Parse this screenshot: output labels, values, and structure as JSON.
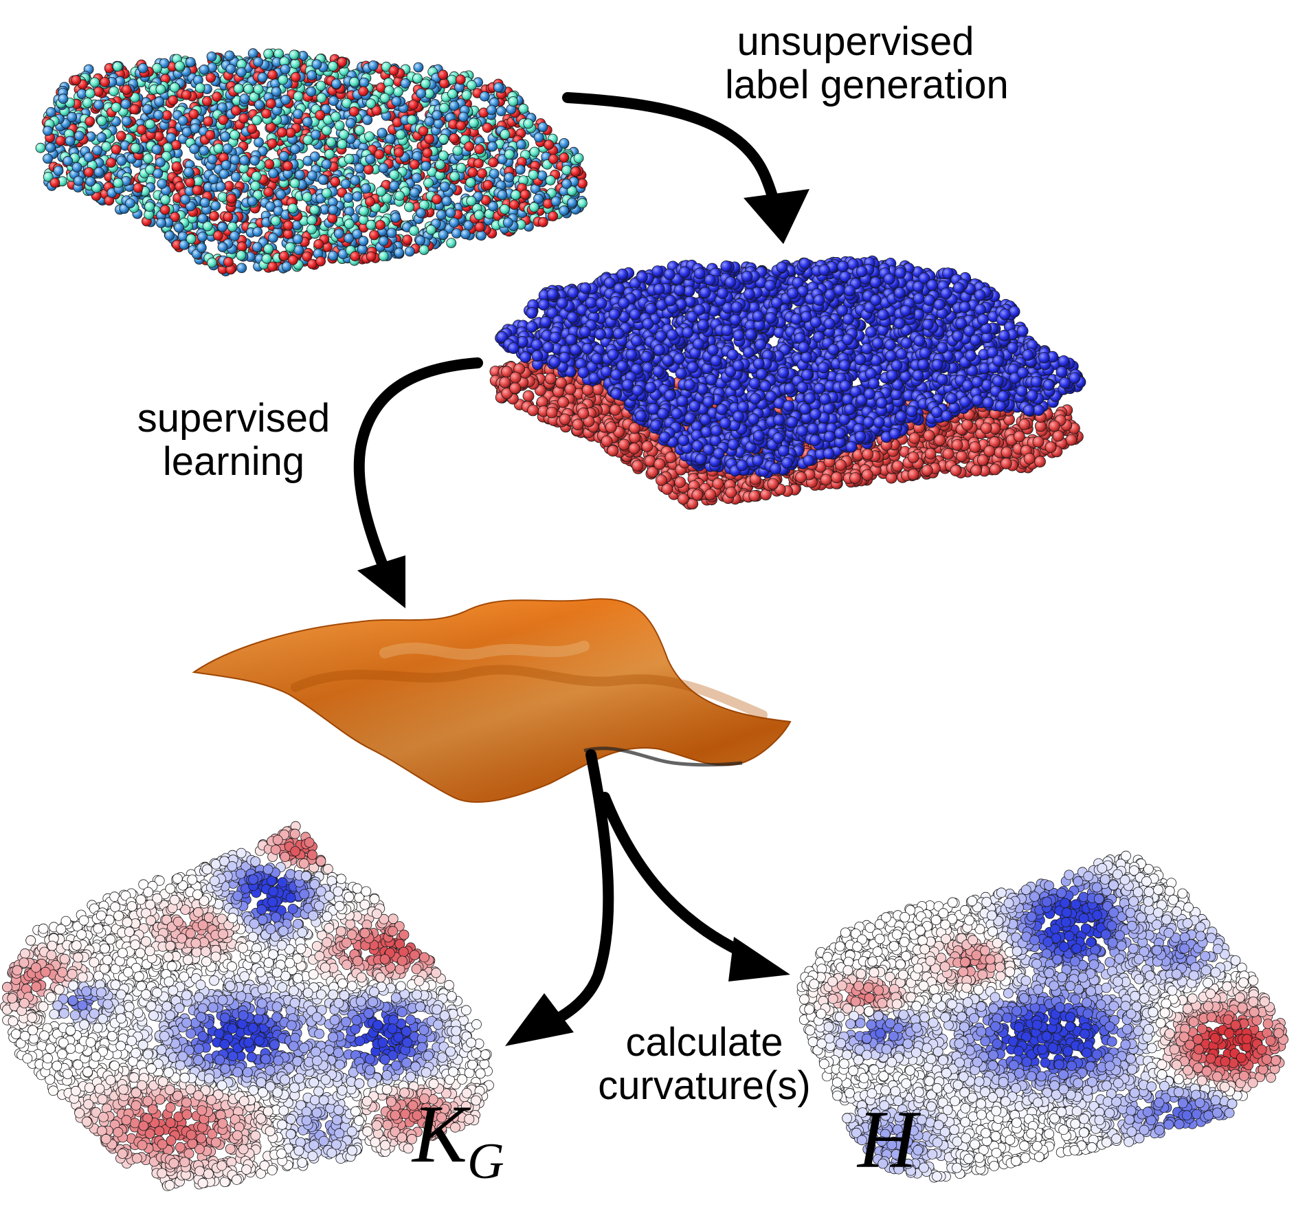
{
  "labels": {
    "unsupervised_line1": "unsupervised",
    "unsupervised_line2": "label generation",
    "supervised_line1": "supervised",
    "supervised_line2": "learning",
    "calculate_line1": "calculate",
    "calculate_line2": "curvature(s)"
  },
  "math": {
    "gaussian_main": "K",
    "gaussian_sub": "G",
    "mean": "H"
  },
  "colors": {
    "lipid_red": "#e8282b",
    "lipid_cyan": "#5fe6c8",
    "lipid_blue": "#3b8fd9",
    "leaflet_upper": "#2b33e6",
    "leaflet_lower": "#e24646",
    "surface_orange": "#f28c28",
    "curv_positive": "#d9363e",
    "curv_negative": "#2f3fe0",
    "curv_neutral": "#ffffff"
  },
  "icons": {
    "arrow_1": "curved-arrow-down-right",
    "arrow_2": "curved-arrow-down-left",
    "arrow_3": "curved-arrow-down-left",
    "arrow_4": "curved-arrow-down-right"
  }
}
